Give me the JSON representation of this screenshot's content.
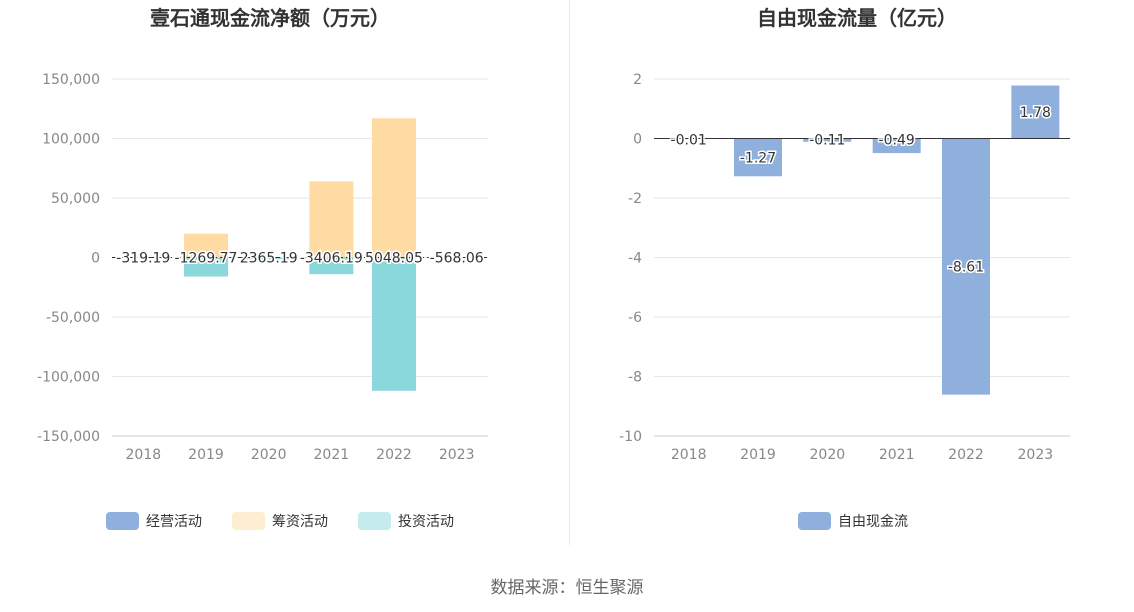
{
  "source": "数据来源：恒生聚源",
  "chart_data": [
    {
      "type": "bar",
      "title": "壹石通现金流净额（万元）",
      "categories": [
        "2018",
        "2019",
        "2020",
        "2021",
        "2022",
        "2023"
      ],
      "ylim": [
        -150000,
        150000
      ],
      "yticks": [
        150000,
        100000,
        50000,
        0,
        -50000,
        -100000,
        -150000
      ],
      "ytick_labels": [
        "150,000",
        "100,000",
        "50,000",
        "0",
        "-50,000",
        "-100,000",
        "-150,000"
      ],
      "legend_position": "bottom",
      "grid": true,
      "series": [
        {
          "name": "经营活动",
          "color": "#8fafdd",
          "values": [
            null,
            null,
            null,
            null,
            null,
            null
          ]
        },
        {
          "name": "筹资活动",
          "color": "#fddba3",
          "values": [
            0,
            20000,
            0,
            64000,
            117000,
            0
          ]
        },
        {
          "name": "投资活动",
          "color": "#8ad8db",
          "values": [
            0,
            -16000,
            -1500,
            -14000,
            -112000,
            0
          ]
        }
      ],
      "data_labels": [
        "-319.19",
        "-1269.77",
        "2365.19",
        "-3406.19",
        "5048.05",
        "-568.06"
      ],
      "data_labels_note": "净额"
    },
    {
      "type": "bar",
      "title": "自由现金流量（亿元）",
      "categories": [
        "2018",
        "2019",
        "2020",
        "2021",
        "2022",
        "2023"
      ],
      "ylim": [
        -10,
        2
      ],
      "yticks": [
        2,
        0,
        -2,
        -4,
        -6,
        -8,
        -10
      ],
      "ytick_labels": [
        "2",
        "0",
        "-2",
        "-4",
        "-6",
        "-8",
        "-10"
      ],
      "legend_position": "bottom",
      "grid": true,
      "series": [
        {
          "name": "自由现金流",
          "color": "#8fafdd",
          "values": [
            -0.01,
            -1.27,
            -0.11,
            -0.49,
            -8.61,
            1.78
          ]
        }
      ],
      "data_labels": [
        "-0.01",
        "-1.27",
        "-0.11",
        "-0.49",
        "-8.61",
        "1.78"
      ]
    }
  ]
}
